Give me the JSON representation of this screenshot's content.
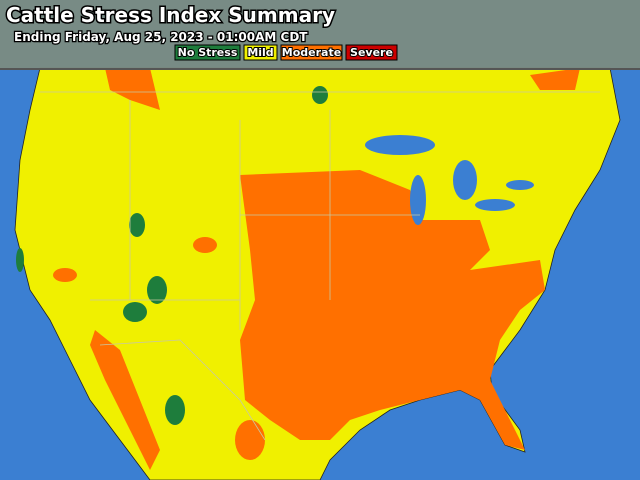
{
  "header": {
    "title": "Cattle Stress Index Summary",
    "subtitle": "Ending Friday, Aug 25, 2023 - 01:00AM CDT"
  },
  "legend": [
    {
      "label": "No Stress",
      "color": "#1e7d3c"
    },
    {
      "label": "Mild",
      "color": "#f0f000"
    },
    {
      "label": "Moderate",
      "color": "#ff7000"
    },
    {
      "label": "Severe",
      "color": "#cc0000"
    }
  ]
}
